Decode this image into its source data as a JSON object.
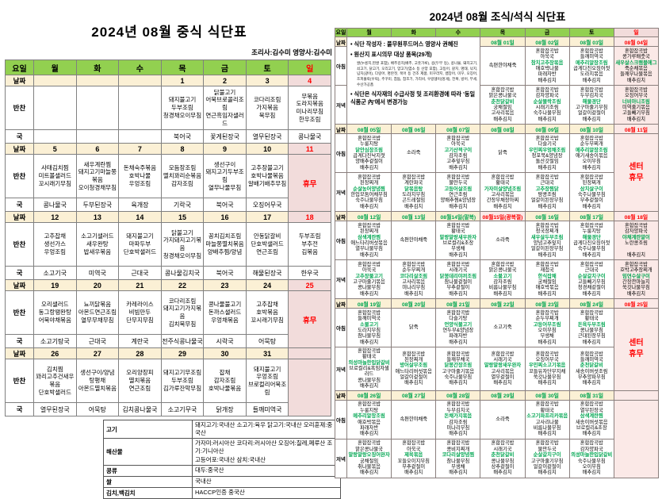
{
  "colors": {
    "header_green": "#92d050",
    "cream": "#fbf0d5",
    "pink": "#f2dcdb",
    "pink_light": "#fbe9e7",
    "green_text": "#00a651",
    "red": "#ff0000"
  },
  "lunch": {
    "title": "2024년 08월 중식 식단표",
    "staff": "조리사:김수미   영양사:김수미",
    "day_headers": [
      "요일",
      "월",
      "화",
      "수",
      "목",
      "금",
      "토",
      "일"
    ],
    "row_labels": {
      "date": "날짜",
      "side": "반찬",
      "soup": "국"
    },
    "holiday_label": "휴무",
    "weeks": [
      {
        "sunday": "menu",
        "dates": [
          "",
          "",
          "",
          "1",
          "2",
          "3",
          "4"
        ],
        "sides": [
          "",
          "",
          "",
          "돼지불고기\n두부조림\n청경채오이무침",
          "닭불고기\n어묵브로콜리조림\n연근흑임자샐러드",
          "코다리조림\n가지볶음\n묵무침",
          "무볶음\n도라지볶음\n미나리무침\n한우조림"
        ],
        "soups": [
          "",
          "",
          "",
          "북어국",
          "꽃게된장국",
          "열무된장국",
          "콩나물국"
        ]
      },
      {
        "sunday": "closed",
        "dates": [
          "5",
          "6",
          "7",
          "8",
          "9",
          "10",
          "11"
        ],
        "sides": [
          "사태김치찜\n미트볼샐러드\n꼬시래기무침",
          "새우계란찜\n돼지고기마늘쫑볶음\n오이청경채무침",
          "돈채숙주볶음\n호박나물\n우엉조림",
          "모듬장조림\n멸치꽈리순볶음\n감자조림",
          "생선구이\n돼지고기두부조림\n열무나물무침",
          "고추장불고기\n호박나물볶음\n알배기배추무침",
          ""
        ],
        "soups": [
          "콩나물국",
          "두부된장국",
          "육개장",
          "기락국",
          "북어국",
          "오징어무국",
          ""
        ]
      },
      {
        "sunday": "menu",
        "dates": [
          "12",
          "13",
          "14",
          "15",
          "16",
          "17",
          "18"
        ],
        "sides": [
          "고추잡채\n생선가스\n우엉조림",
          "소고기샐러드\n새우완탕\n밥새우볶음",
          "돼지불고기\n마파두부\n단호박샐러드",
          "닭불고기\n가지돼지고기볶음\n청경채오이무침",
          "꽁치김치조림\n마늘쫑멸치볶음\n양배추찜/양념",
          "안동닭갈비\n단호박샐러드\n연근조림",
          "두부조림\n부추전\n김볶음"
        ],
        "soups": [
          "소고기국",
          "미역국",
          "근대국",
          "콩나물김치국",
          "북어국",
          "해물된장국",
          "한우국"
        ]
      },
      {
        "sunday": "closed",
        "dates": [
          "19",
          "20",
          "21",
          "22",
          "23",
          "24",
          "25"
        ],
        "sides": [
          "오리샐러드\n동그랑땡완탕\n어묵야채볶음",
          "뇨끼닭볶음\n아몬드연근조림\n열무무채무침",
          "카레라이스\n비빔만두\n단무지무침",
          "코다리조림\n돼지고기가지볶음\n김치묵무침",
          "콩나물불고기\n돈까스샐러드\n우엉채볶음",
          "고추잡채\n호박볶음\n꼬시래기무침",
          ""
        ],
        "soups": [
          "소고기탕국",
          "근대국",
          "계란국",
          "전주식콩나물국",
          "시락국",
          "어묵탕",
          ""
        ]
      },
      {
        "sunday": "blank",
        "dates": [
          "26",
          "27",
          "28",
          "29",
          "30",
          "31",
          ""
        ],
        "sides": [
          "김치찜\n꽈리고추건새우볶음\n단호박샐러드",
          "생선구이/양념\n탕평채\n아몬드멸치볶음",
          "오리양장피\n멸치볶음\n연근조림",
          "돼지고기무조림\n두부조림\n김가루잔막무침",
          "잡채\n감자조림\n호박나물볶음",
          "돼지불고기\n우엉조림\n브로컬리어묵조림",
          ""
        ],
        "soups": [
          "열무된장국",
          "어묵탕",
          "김치콩나물국",
          "소고기무국",
          "닭개장",
          "들깨미역국",
          ""
        ]
      }
    ],
    "origin": {
      "rows": [
        {
          "label": "고기",
          "value": "돼지고기:국내산 소고기:육우 닭고기:국내산 오리훈제:중국산"
        },
        {
          "label": "해산물",
          "value": "가자미:러시아산 코다리:러시아산 오징어:칠레,페루산 조기:기니아산\n고등어포:국내산 삼치:국내산"
        },
        {
          "label": "콩류",
          "value": "대두:중국산"
        },
        {
          "label": "쌀",
          "value": "국내산"
        },
        {
          "label": "김치,백김치",
          "value": "HACCP인증 중국산"
        }
      ]
    }
  },
  "meal": {
    "title": "2024년 08월 조식/석식 식단표",
    "day_headers": [
      "요일",
      "월",
      "화",
      "수",
      "목",
      "금",
      "토",
      "일"
    ],
    "row_labels": {
      "date": "날짜",
      "breakfast": "아침",
      "dinner": "저녁"
    },
    "holiday_label": "센터\n휴무",
    "notes": {
      "author": "• 식단 작성자 : 풀무원푸드머스 영양사 권혜진",
      "origin_title": "• 원산지 표시의무 대상 품목(29개)",
      "origin_items": "쌀(누룽지,찐쌀 포함), 배추김치(배추, 고춧가루), 콩(두부 등), 콩나물, 돼지고기, 쇠고기, 닭고기, 오리고기, 양고기(염소 등 산양 포함), 고등어, 갈치, 명태, 낙지, 넙치(광어), 다랑어, 명란젓, 북어 등 건조 제품, 미꾸라지, 뱀장어, 미꾸, 오징어, 조피볼락(우럭), 주꾸미, 참돔, 참조기, 가리비, 우렁쉥이(멍게), 전복, 방어, 부세, 수산가공품",
      "change_note": "• 식단은 식자재의 수급사정 및 조리환경에 따라 '동일 식품군 內'에서 변경가능"
    },
    "weeks": [
      {
        "sunday": "menu",
        "notes_span": true,
        "dates": [
          null,
          null,
          null,
          "08월 01일",
          "08월 02일",
          "08월 03일",
          "08월 04일"
        ],
        "breakfast": [
          null,
          null,
          null,
          "속편한야채죽",
          "혼합잡곡밥\n아욱국\n참치고추장볶음\n애호박나물\n파래자반\n배추김치",
          "혼합잡곡밥\n들깨미역국\n메추리알장조림\n곱게다진오징어젓\n도라지볶음\n배추김치",
          "혼합잡곡밥\n콩가루배춧국\n새우살스크램블에그\n죽순채볶음\n들깨무나물볶음\n배추김치"
        ],
        "dinner": [
          null,
          null,
          null,
          "혼합잡곡밥\n맑은콩나물국\n춘천닭갈비\n궁채절임\n고사리볶음\n배추김치",
          "혼합잡곡밥\n감자양파국\n순살볼락조림\n시래기조림\n숙주나물무침\n배추김치",
          "혼합잡곡밥\n두부김치국\n해물경단\n고구마줄기무침\n얼갈이겉절이\n배추김치",
          "혼합잡곡밥\n오징어무국\n너비아니조림\n미역줄기볶음\n고들빼기무침\n배추김치"
        ]
      },
      {
        "sunday": "closed",
        "dates": [
          "08월 05일",
          "08월 06일",
          "08월 07일",
          "08월 08일",
          "08월 09일",
          "08월 10일",
          "08월 11일"
        ],
        "breakfast": [
          "혼합잡곡밥\n누룽지탕\n닭안심장조림\n곱게다진낙지젓\n양배추겉절이\n배추김치",
          "소라죽",
          "혼합잡곡밥\n아욱국\n고기산적구이\n감자조림\n고추잎무침\n배추김치",
          "닭죽",
          "혼합잡곡밥\n다슬기국\n우민찌우엉채조림\n청포묵&양념장\n돌산갓절임\n배추김치",
          "혼합잡곡밥\n순두부찌개\n메추리알장조림\n애기새송이볶음\n오이무침\n배추김치",
          null
        ],
        "dinner": [
          "혼합잡곡밥\n된장찌개\n순살농어양념찜\n한입모둠어채무침\n숙주나물무침\n배추김치",
          "혼합잡곡밥\n계란파국\n닭볶음탕\n도라지무침\n곤드레절임\n배추김치",
          "혼합잡곡밥\n물만두국\n고등어살조림\n연근조림\n양배추찜&양념장\n배추김치",
          "혼합잡곡밥\n황태국\n가자미살양념조림\n고사리볶음\n간장무채장아찌\n배추김치",
          "혼합잡곡밥\n근대국\n고추장찜닭\n땅콩조림\n얼갈이된장무침\n배추김치",
          "혼합잡곡밥\n된장찌개\n삼치살구이\n숙주나물무침\n부추겉절이\n배추김치",
          null
        ]
      },
      {
        "sunday": "menu",
        "dates": [
          "08월 12일",
          "08월 13일",
          "08월14일(말복)",
          "08월15일(광복절)",
          "08월 16일",
          "08월 17일",
          "08월 18일"
        ],
        "breakfast": [
          "혼합잡곡밥\n된장찌개\n삼색계란찜\n애느타리버섯볶음\n열무나물무침\n배추김치",
          "속편한야채죽",
          "혼합잡곡밥\n황태국\n말랑말랑새우완자\n브로컬리&초장\n무생채\n배추김치",
          "소라죽",
          "혼합잡곡밥\n청국장찌개\n새우살두부조림\n양념고추잎지\n얼갈이된장무침\n배추김치",
          "혼합잡곡밥\n누룽지탕\n해물경단\n곱게다진오징어젓\n숙주나물무침\n배추김치",
          "혼합잡곡밥\n감자양파국\n야채계란말이\n노란콩조림\n\n배추김치"
        ],
        "dinner": [
          "혼합잡곡밥\n아욱국\n고추장불고기\n고구마줄기볶음\n콩나물무침\n배추김치",
          "혼합잡곡밥\n순두부찌개\n코다리살조림\n고사리볶음\n미나리무침\n배추김치",
          "혼합잡곡밥\n시래기국\n닭봉데리야끼조림\n참나물겉절이\n부추겉절이\n배추김치",
          "혼합잡곡밥\n맑은콩나물국\n소불고기\n감자조림\n비름나물무침\n배추김치",
          "혼합잡곡밥\n재첩국\n한식잡채\n궁채절임\n애호박볶음\n배추김치",
          "혼합잡곡밥\n근대국\n순살갈치구이\n고들빼기무침\n청경채겉절이\n배추김치",
          "혼합잡곡밥\n호박고추장찌개\n임연수살구이\n간장깐마늘지\n쑥갓나물무침\n배추김치"
        ]
      },
      {
        "sunday": "closed",
        "dates": [
          "08월 19일",
          "08월 20일",
          "08월 21일",
          "08월 22일",
          "08월 23일",
          "08월 24일",
          "08월 25일"
        ],
        "breakfast": [
          "혼합잡곡밥\n들깨미역국\n소불고기\n도라지무침\n참나물무침\n배추김치",
          "닭죽",
          "혼합잡곡밥\n다슬기탕\n언양식불고기\n연두부&양념장\n파래자반\n배추김치",
          "소고기죽",
          "혼합잡곡밥\n순두부찌개\n고등어무조림\n오이무침\n무생채\n배추김치",
          "혼합잡곡밥\n황태국\n돈육두부조림\n콩나물무침\n근대된장무침\n배추김치",
          null
        ],
        "dinner": [
          "혼합잡곡밥\n황태국\n의성마늘한입닭갈비\n브로컬리&흑임자샐러드\n콩나물무침\n배추김치",
          "혼합잡곡밥\n된장찌개\n방어살무조림\n애느타리버섯볶음\n얼갈이겉절이\n배추김치",
          "혼합잡곡밥\n들깨무채국\n닭봉간장조림\n고구마줄기볶음\n숙주나물무침\n배추김치",
          "혼합잡곡밥\n시래기국\n말랑말랑새우완자\n고사리볶음\n열무겉절이\n배추김치",
          "혼합잡곡밥\n오징어무국\n우민찌소고기볶음\n꼬들유자단무지채\n쑥갓나물무침\n배추김치",
          "혼합잡곡밥\n들깨미역국\n춘천닭갈비\n새송이버섯조림\n부추양파무침\n배추김치",
          null
        ]
      },
      {
        "sunday": "blank",
        "dates": [
          "08월 26일",
          "08월 27일",
          "08월 28일",
          "08월 29일",
          "08월 30일",
          "08월 31일",
          ""
        ],
        "breakfast": [
          "혼합잡곡밥\n누룽지탕\n메추리알장조림\n애호박볶음\n파래자반\n배추김치",
          "속편한야채죽",
          "혼합잡곡밥\n두부김치국\n돈채가지볶음\n감자조림\n미나리무침\n배추김치",
          "소라죽",
          "혼합잡곡밥\n황태국\n소고기파프리카볶음\n고사리나물\n비름나물무침\n배추김치",
          "혼합잡곡밥\n열무된장국\n삼색계란찜\n새송이버섯볶음\n브로컬리&초장\n배추김치",
          null
        ],
        "dinner": [
          "혼합잡곡밥\n맑은콩나물국\n말랑말랑오징어완자\n궁채절임\n취나물볶음\n배추김치",
          "혼합잡곡밥\n아욱국\n제육볶음\n꼬들오이지무침\n부추겉절이\n배추김치",
          "혼합잡곡밥\n콩비지찌개\n코다리살양념찜\n참나물무침\n무생채\n배추김치",
          "혼합잡곡밥\n시래기국\n춘천닭갈비\n콩나물무침\n상추겉절이\n배추김치",
          "혼합잡곡밥\n물만두국\n순살갈치구이\n고구마줄기무침\n얼갈이겉절이\n배추김치",
          "혼합잡곡밥\n감자양파국\n의성마늘한입닭갈비\n숙주나물무침\n오이무침\n배추김치",
          null
        ]
      }
    ]
  }
}
